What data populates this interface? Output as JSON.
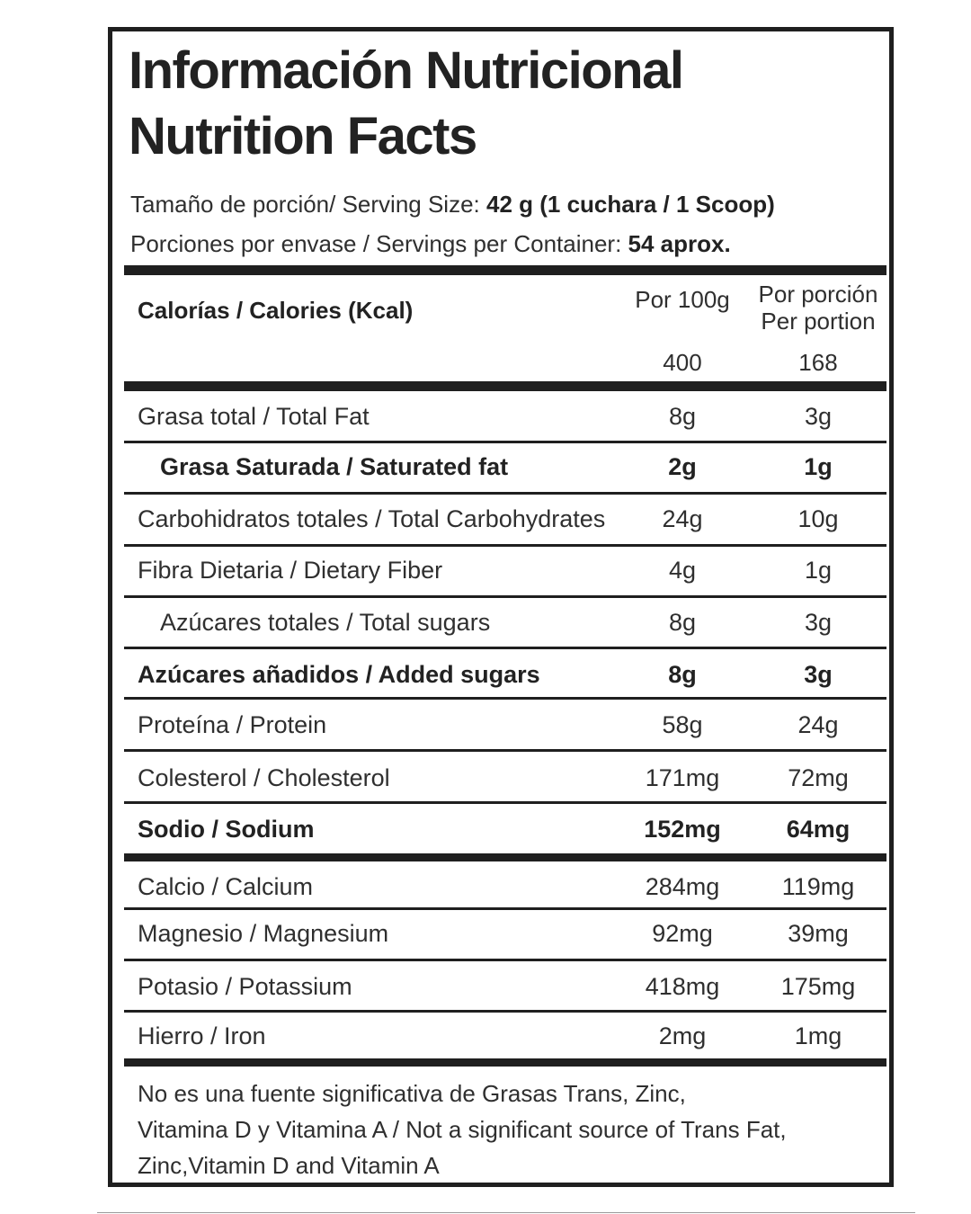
{
  "title_es": "Información Nutricional",
  "title_en": "Nutrition Facts",
  "serving_size": {
    "label": "Tamaño de porción/ Serving Size: ",
    "value": "42 g (1 cuchara / 1 Scoop)"
  },
  "servings_per_container": {
    "label": "Porciones por envase / Servings per Container: ",
    "value": "54 aprox."
  },
  "calories": {
    "label": "Calorías / Calories  (Kcal)",
    "col_100g": "Por 100g",
    "col_portion_es": "Por porción",
    "col_portion_en": "Per portion",
    "value_100g": "400",
    "value_portion": "168"
  },
  "nutrients": [
    {
      "name": "Grasa total / Total Fat",
      "per100": "8g",
      "portion": "3g"
    },
    {
      "name": "Grasa Saturada / Saturated fat",
      "per100": "2g",
      "portion": "1g"
    },
    {
      "name": "Carbohidratos totales / Total Carbohydrates",
      "per100": "24g",
      "portion": "10g"
    },
    {
      "name": "Fibra Dietaria  /  Dietary Fiber",
      "per100": "4g",
      "portion": "1g"
    },
    {
      "name": "Azúcares totales / Total sugars",
      "per100": "8g",
      "portion": "3g"
    },
    {
      "name": "Azúcares añadidos / Added sugars",
      "per100": "8g",
      "portion": "3g"
    },
    {
      "name": "Proteína / Protein",
      "per100": "58g",
      "portion": "24g"
    },
    {
      "name": "Colesterol / Cholesterol",
      "per100": "171mg",
      "portion": "72mg"
    },
    {
      "name": "Sodio /  Sodium",
      "per100": "152mg",
      "portion": "64mg"
    },
    {
      "name": "Calcio / Calcium",
      "per100": "284mg",
      "portion": "119mg"
    },
    {
      "name": "Magnesio / Magnesium",
      "per100": "92mg",
      "portion": "39mg"
    },
    {
      "name": "Potasio / Potassium",
      "per100": "418mg",
      "portion": "175mg"
    },
    {
      "name": "Hierro  / Iron",
      "per100": "2mg",
      "portion": "1mg"
    }
  ],
  "footnote": {
    "line1": "No es una fuente significativa de Grasas Trans, Zinc,",
    "line2": "Vitamina D y Vitamina A  /  Not a significant source of Trans Fat,",
    "line3": "Zinc,Vitamin D and Vitamin A"
  }
}
